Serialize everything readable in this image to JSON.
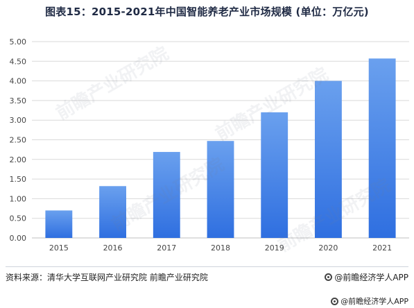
{
  "title": "图表15：2015-2021年中国智能养老产业市场规模 (单位：万亿元)",
  "source": "资料来源：清华大学互联网产业研究院 前瞻产业研究院",
  "brand": "@前瞻经济学人APP",
  "brand_footer": "@前瞻经济学人APP",
  "watermark": "前瞻产业研究院",
  "colors": {
    "bar_top": "#6aa0ee",
    "bar_bottom": "#2f6fe0",
    "grid": "#d9d9d9",
    "axis": "#bfbfbf"
  },
  "chart_data": {
    "type": "bar",
    "categories": [
      "2015",
      "2016",
      "2017",
      "2018",
      "2019",
      "2020",
      "2021"
    ],
    "values": [
      0.7,
      1.32,
      2.19,
      2.47,
      3.2,
      4.0,
      4.57
    ],
    "ylim": [
      0,
      5.0
    ],
    "yticks": [
      "0.00",
      "0.50",
      "1.00",
      "1.50",
      "2.00",
      "2.50",
      "3.00",
      "3.50",
      "4.00",
      "4.50",
      "5.00"
    ],
    "grid": true
  }
}
